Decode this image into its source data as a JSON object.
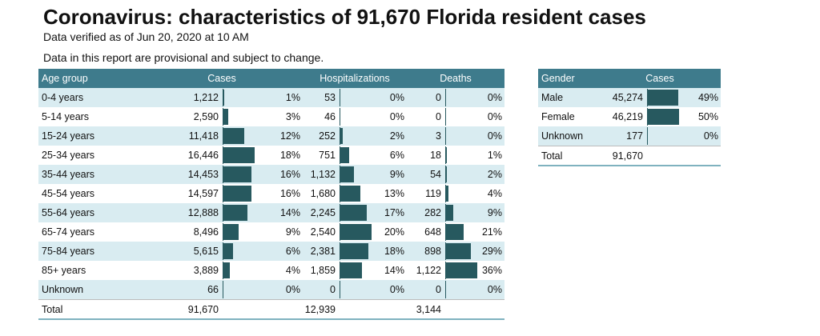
{
  "header": {
    "title": "Coronavirus: characteristics of 91,670 Florida resident cases",
    "subtitle": "Data verified as of Jun 20, 2020 at 10 AM",
    "note": "Data in this report are provisional and subject to change."
  },
  "age_table": {
    "columns": {
      "group": "Age group",
      "cases": "Cases",
      "hosp": "Hospitalizations",
      "deaths": "Deaths"
    },
    "rows": [
      {
        "group": "0-4 years",
        "cases": "1,212",
        "cases_pct": "1%",
        "hosp": "53",
        "hosp_pct": "0%",
        "deaths": "0",
        "deaths_pct": "0%"
      },
      {
        "group": "5-14 years",
        "cases": "2,590",
        "cases_pct": "3%",
        "hosp": "46",
        "hosp_pct": "0%",
        "deaths": "0",
        "deaths_pct": "0%"
      },
      {
        "group": "15-24 years",
        "cases": "11,418",
        "cases_pct": "12%",
        "hosp": "252",
        "hosp_pct": "2%",
        "deaths": "3",
        "deaths_pct": "0%"
      },
      {
        "group": "25-34 years",
        "cases": "16,446",
        "cases_pct": "18%",
        "hosp": "751",
        "hosp_pct": "6%",
        "deaths": "18",
        "deaths_pct": "1%"
      },
      {
        "group": "35-44 years",
        "cases": "14,453",
        "cases_pct": "16%",
        "hosp": "1,132",
        "hosp_pct": "9%",
        "deaths": "54",
        "deaths_pct": "2%"
      },
      {
        "group": "45-54 years",
        "cases": "14,597",
        "cases_pct": "16%",
        "hosp": "1,680",
        "hosp_pct": "13%",
        "deaths": "119",
        "deaths_pct": "4%"
      },
      {
        "group": "55-64 years",
        "cases": "12,888",
        "cases_pct": "14%",
        "hosp": "2,245",
        "hosp_pct": "17%",
        "deaths": "282",
        "deaths_pct": "9%"
      },
      {
        "group": "65-74 years",
        "cases": "8,496",
        "cases_pct": "9%",
        "hosp": "2,540",
        "hosp_pct": "20%",
        "deaths": "648",
        "deaths_pct": "21%"
      },
      {
        "group": "75-84 years",
        "cases": "5,615",
        "cases_pct": "6%",
        "hosp": "2,381",
        "hosp_pct": "18%",
        "deaths": "898",
        "deaths_pct": "29%"
      },
      {
        "group": "85+ years",
        "cases": "3,889",
        "cases_pct": "4%",
        "hosp": "1,859",
        "hosp_pct": "14%",
        "deaths": "1,122",
        "deaths_pct": "36%"
      },
      {
        "group": "Unknown",
        "cases": "66",
        "cases_pct": "0%",
        "hosp": "0",
        "hosp_pct": "0%",
        "deaths": "0",
        "deaths_pct": "0%"
      }
    ],
    "total": {
      "label": "Total",
      "cases": "91,670",
      "hosp": "12,939",
      "deaths": "3,144"
    }
  },
  "gender_table": {
    "columns": {
      "group": "Gender",
      "cases": "Cases"
    },
    "rows": [
      {
        "group": "Male",
        "cases": "45,274",
        "cases_pct": "49%"
      },
      {
        "group": "Female",
        "cases": "46,219",
        "cases_pct": "50%"
      },
      {
        "group": "Unknown",
        "cases": "177",
        "cases_pct": "0%"
      }
    ],
    "total": {
      "label": "Total",
      "cases": "91,670"
    }
  },
  "colors": {
    "header_bg": "#3e7b8c",
    "bar": "#27595f",
    "stripe": "#d9ecf1"
  }
}
